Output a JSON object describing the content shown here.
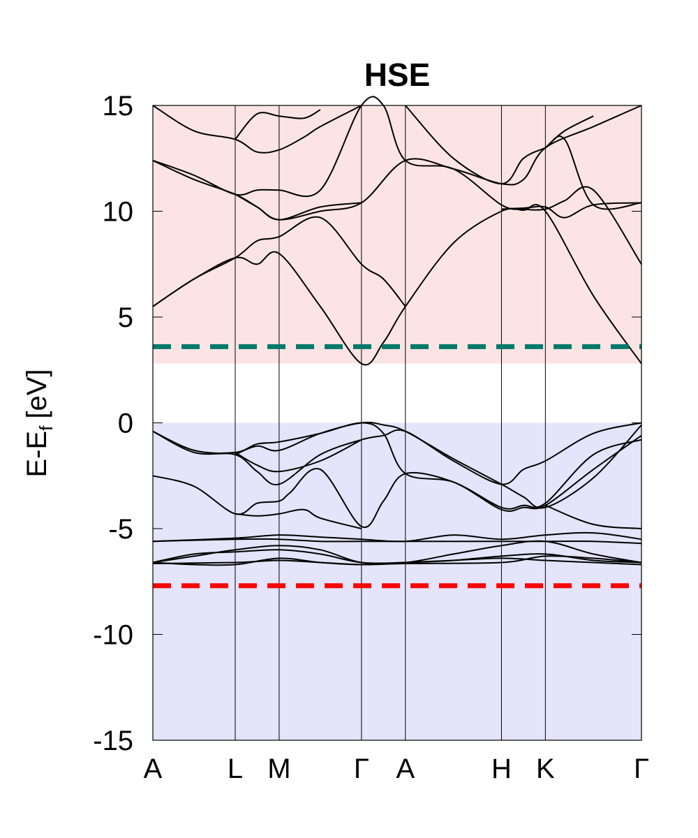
{
  "chart_data": {
    "type": "line",
    "title": "HSE",
    "ylabel": "E-E",
    "ylabel_sub": "f",
    "ylabel_unit": "[eV]",
    "ylim": [
      -15,
      15
    ],
    "yticks": [
      -15,
      -10,
      -5,
      0,
      5,
      10,
      15
    ],
    "ytick_labels": [
      "-15",
      "-10",
      "-5",
      "0",
      "5",
      "10",
      "15"
    ],
    "kpoints": [
      {
        "label": "A",
        "x": 0.0
      },
      {
        "label": "L",
        "x": 0.6
      },
      {
        "label": "M",
        "x": 0.92
      },
      {
        "label": "Γ",
        "x": 1.52
      },
      {
        "label": "A",
        "x": 1.84
      },
      {
        "label": "H",
        "x": 2.54
      },
      {
        "label": "K",
        "x": 2.86
      },
      {
        "label": "Γ",
        "x": 3.56
      }
    ],
    "conduction_region": {
      "from": 2.8,
      "to": 15,
      "color": "#fce4e4"
    },
    "valence_region": {
      "from": -15,
      "to": 0,
      "color": "#e4e4fa"
    },
    "reference_lines": [
      {
        "y": 3.6,
        "color": "#00796b"
      },
      {
        "y": -7.7,
        "color": "#ff0000"
      }
    ],
    "series": [
      {
        "x": [
          0,
          0.3,
          0.6,
          0.76,
          0.92,
          1.22,
          1.52,
          1.68,
          1.84,
          2.19,
          2.54,
          2.7,
          2.86,
          3.21,
          3.56
        ],
        "y": [
          5.5,
          6.8,
          7.8,
          7.5,
          8.0,
          5.5,
          2.8,
          3.8,
          5.5,
          8.5,
          10.0,
          10.05,
          10.0,
          6.0,
          2.8
        ]
      },
      {
        "x": [
          0,
          0.3,
          0.6,
          0.76,
          0.92,
          1.22,
          1.52,
          1.68,
          1.84
        ],
        "y": [
          5.5,
          6.8,
          7.8,
          8.6,
          8.8,
          9.7,
          7.5,
          6.8,
          5.5
        ]
      },
      {
        "x": [
          0,
          0.3,
          0.6,
          0.76,
          0.92,
          1.22,
          1.52,
          1.84,
          2.19,
          2.54,
          2.7,
          2.86,
          3.21,
          3.56
        ],
        "y": [
          12.4,
          11.5,
          10.8,
          10.2,
          9.6,
          10.0,
          10.4,
          12.4,
          12.0,
          11.3,
          11.5,
          13.0,
          14.0,
          15.0
        ]
      },
      {
        "x": [
          0,
          0.3,
          0.6,
          0.76,
          0.92,
          1.22,
          1.52,
          1.68,
          1.84,
          2.19,
          2.54,
          2.7,
          2.86,
          3.0,
          3.21,
          3.56
        ],
        "y": [
          12.4,
          11.7,
          10.8,
          11.0,
          11.0,
          11.0,
          15.0,
          15.0,
          12.4,
          12.0,
          10.3,
          10.1,
          10.1,
          10.5,
          11.0,
          7.5
        ]
      },
      {
        "x": [
          0.6,
          0.76,
          0.92,
          1.22,
          1.52
        ],
        "y": [
          10.8,
          10.2,
          9.6,
          10.2,
          10.4
        ]
      },
      {
        "x": [
          0,
          0.3,
          0.6,
          0.76,
          0.92,
          1.1,
          1.22,
          1.52
        ],
        "y": [
          15.0,
          13.8,
          13.4,
          12.8,
          12.9,
          13.5,
          14.0,
          15.0
        ]
      },
      {
        "x": [
          0.6,
          0.76,
          0.92,
          1.1,
          1.22
        ],
        "y": [
          13.4,
          14.6,
          14.5,
          14.4,
          14.8
        ]
      },
      {
        "x": [
          1.84,
          2.19,
          2.54,
          2.7,
          2.86,
          3.0,
          3.21,
          3.56
        ],
        "y": [
          15.0,
          12.5,
          11.3,
          12.5,
          13.0,
          13.4,
          10.3,
          10.4
        ]
      },
      {
        "x": [
          2.54,
          2.7,
          2.86,
          3.0,
          3.21,
          3.56
        ],
        "y": [
          10.1,
          10.15,
          10.2,
          9.7,
          10.3,
          10.4
        ]
      },
      {
        "x": [
          2.86,
          3.0,
          3.21
        ],
        "y": [
          13.0,
          13.8,
          14.5
        ]
      },
      {
        "x": [
          0,
          0.3,
          0.6,
          0.76,
          0.92,
          1.22,
          1.52,
          1.68,
          1.84,
          2.19,
          2.54,
          2.7,
          2.86,
          3.21,
          3.56
        ],
        "y": [
          -0.4,
          -1.4,
          -1.5,
          -2.3,
          -2.9,
          -1.5,
          -0.8,
          -0.6,
          -0.4,
          -1.8,
          -2.9,
          -2.2,
          -1.8,
          -0.5,
          0.0
        ]
      },
      {
        "x": [
          0,
          0.3,
          0.6,
          0.76,
          0.92,
          1.22,
          1.52,
          1.68,
          1.84,
          2.19,
          2.54,
          2.7,
          2.86,
          3.21,
          3.56
        ],
        "y": [
          -0.4,
          -1.3,
          -1.4,
          -1.0,
          -0.9,
          -0.5,
          0.0,
          -0.5,
          -2.4,
          -2.8,
          -4.0,
          -3.9,
          -3.8,
          -1.5,
          -0.8
        ]
      },
      {
        "x": [
          0.6,
          0.76,
          0.92,
          1.22,
          1.52,
          1.68,
          1.84,
          2.19,
          2.54,
          2.7,
          2.86,
          3.21,
          3.56
        ],
        "y": [
          -1.5,
          -1.1,
          -1.3,
          -0.5,
          0.0,
          -0.1,
          -0.4,
          -1.7,
          -2.9,
          -3.5,
          -4.0,
          -2.6,
          -0.1
        ]
      },
      {
        "x": [
          0.6,
          0.76,
          0.92,
          1.22,
          1.52
        ],
        "y": [
          -1.4,
          -2.0,
          -2.3,
          -1.8,
          -0.8
        ]
      },
      {
        "x": [
          0,
          0.3,
          0.6,
          0.76,
          0.92,
          1.0,
          1.22,
          1.52,
          1.68,
          1.84,
          2.19,
          2.54,
          2.7,
          2.86,
          3.21,
          3.56
        ],
        "y": [
          -2.5,
          -3.0,
          -4.3,
          -3.8,
          -3.7,
          -3.3,
          -2.2,
          -4.9,
          -3.7,
          -2.4,
          -2.8,
          -4.1,
          -4.0,
          -3.9,
          -2.2,
          -0.6
        ]
      },
      {
        "x": [
          0.6,
          0.76,
          0.92,
          1.1,
          1.22,
          1.52
        ],
        "y": [
          -4.3,
          -4.4,
          -4.3,
          -4.1,
          -4.5,
          -5.0
        ]
      },
      {
        "x": [
          2.86,
          3.21,
          3.56
        ],
        "y": [
          -3.9,
          -4.8,
          -5.0
        ]
      },
      {
        "x": [
          0,
          0.6,
          0.92,
          1.22,
          1.52,
          1.84,
          2.19,
          2.54,
          2.86,
          3.21,
          3.56
        ],
        "y": [
          -5.6,
          -5.5,
          -5.5,
          -5.6,
          -5.6,
          -5.6,
          -5.6,
          -5.6,
          -5.6,
          -5.6,
          -5.7
        ]
      },
      {
        "x": [
          0,
          0.6,
          0.92,
          1.22,
          1.52,
          1.84,
          2.19,
          2.54,
          2.86,
          3.21,
          3.56
        ],
        "y": [
          -5.6,
          -5.45,
          -5.3,
          -5.4,
          -5.5,
          -5.6,
          -5.3,
          -5.5,
          -5.3,
          -5.2,
          -5.5
        ]
      },
      {
        "x": [
          0,
          0.3,
          0.6,
          0.92,
          1.22,
          1.52,
          1.84,
          2.19,
          2.54,
          2.86,
          3.21,
          3.56
        ],
        "y": [
          -6.6,
          -6.3,
          -6.0,
          -5.8,
          -6.0,
          -6.6,
          -6.6,
          -6.2,
          -5.8,
          -5.6,
          -6.2,
          -6.6
        ]
      },
      {
        "x": [
          0,
          0.3,
          0.6,
          0.92,
          1.22,
          1.52,
          1.84,
          2.19,
          2.54,
          2.86,
          3.21,
          3.56
        ],
        "y": [
          -6.6,
          -6.2,
          -6.1,
          -6.0,
          -6.2,
          -6.6,
          -6.6,
          -6.5,
          -6.3,
          -6.2,
          -6.5,
          -6.6
        ]
      },
      {
        "x": [
          0,
          0.3,
          0.6,
          0.92,
          1.22,
          1.52,
          1.84,
          2.19,
          2.54,
          2.86,
          3.21,
          3.56
        ],
        "y": [
          -6.6,
          -6.7,
          -6.7,
          -6.4,
          -6.6,
          -6.7,
          -6.6,
          -6.5,
          -6.4,
          -6.5,
          -6.6,
          -6.7
        ]
      },
      {
        "x": [
          0,
          0.6,
          0.92,
          1.22,
          1.52,
          1.84,
          2.54,
          2.86,
          3.21,
          3.56
        ],
        "y": [
          -6.65,
          -6.6,
          -6.5,
          -6.6,
          -6.7,
          -6.65,
          -6.6,
          -6.3,
          -6.4,
          -6.6
        ]
      }
    ]
  }
}
